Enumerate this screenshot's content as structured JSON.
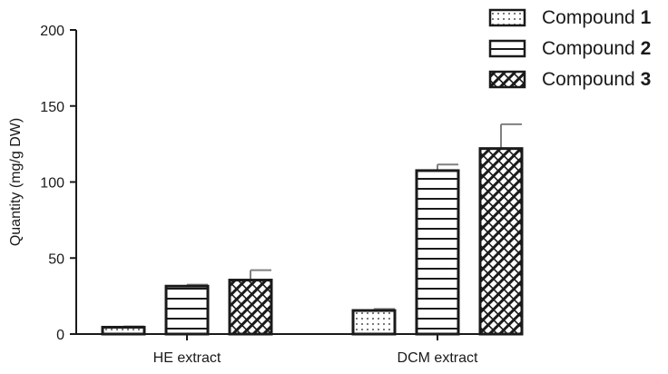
{
  "chart_data": {
    "type": "bar",
    "categories": [
      "HE extract",
      "DCM extract"
    ],
    "series": [
      {
        "name": "Compound",
        "name_suffix": "1",
        "pattern": "dots",
        "values": [
          4.5,
          15.5
        ],
        "errors": [
          0.5,
          1.0
        ]
      },
      {
        "name": "Compound",
        "name_suffix": "2",
        "pattern": "horizontal-stripes",
        "values": [
          31.5,
          107.5
        ],
        "errors": [
          1.0,
          4.0
        ]
      },
      {
        "name": "Compound",
        "name_suffix": "3",
        "pattern": "crosshatch",
        "values": [
          35.5,
          122.0
        ],
        "errors": [
          6.5,
          16.0
        ]
      }
    ],
    "xlabel": "",
    "ylabel": "Quantity (mg/g DW)",
    "ylim": [
      0,
      200
    ],
    "yticks": [
      "0",
      "50",
      "100",
      "150",
      "200"
    ],
    "grid": false,
    "legend_position": "top-right",
    "colors": {
      "stroke": "#1a1a1a",
      "errorbar": "#808080",
      "fill": "#ffffff"
    }
  }
}
